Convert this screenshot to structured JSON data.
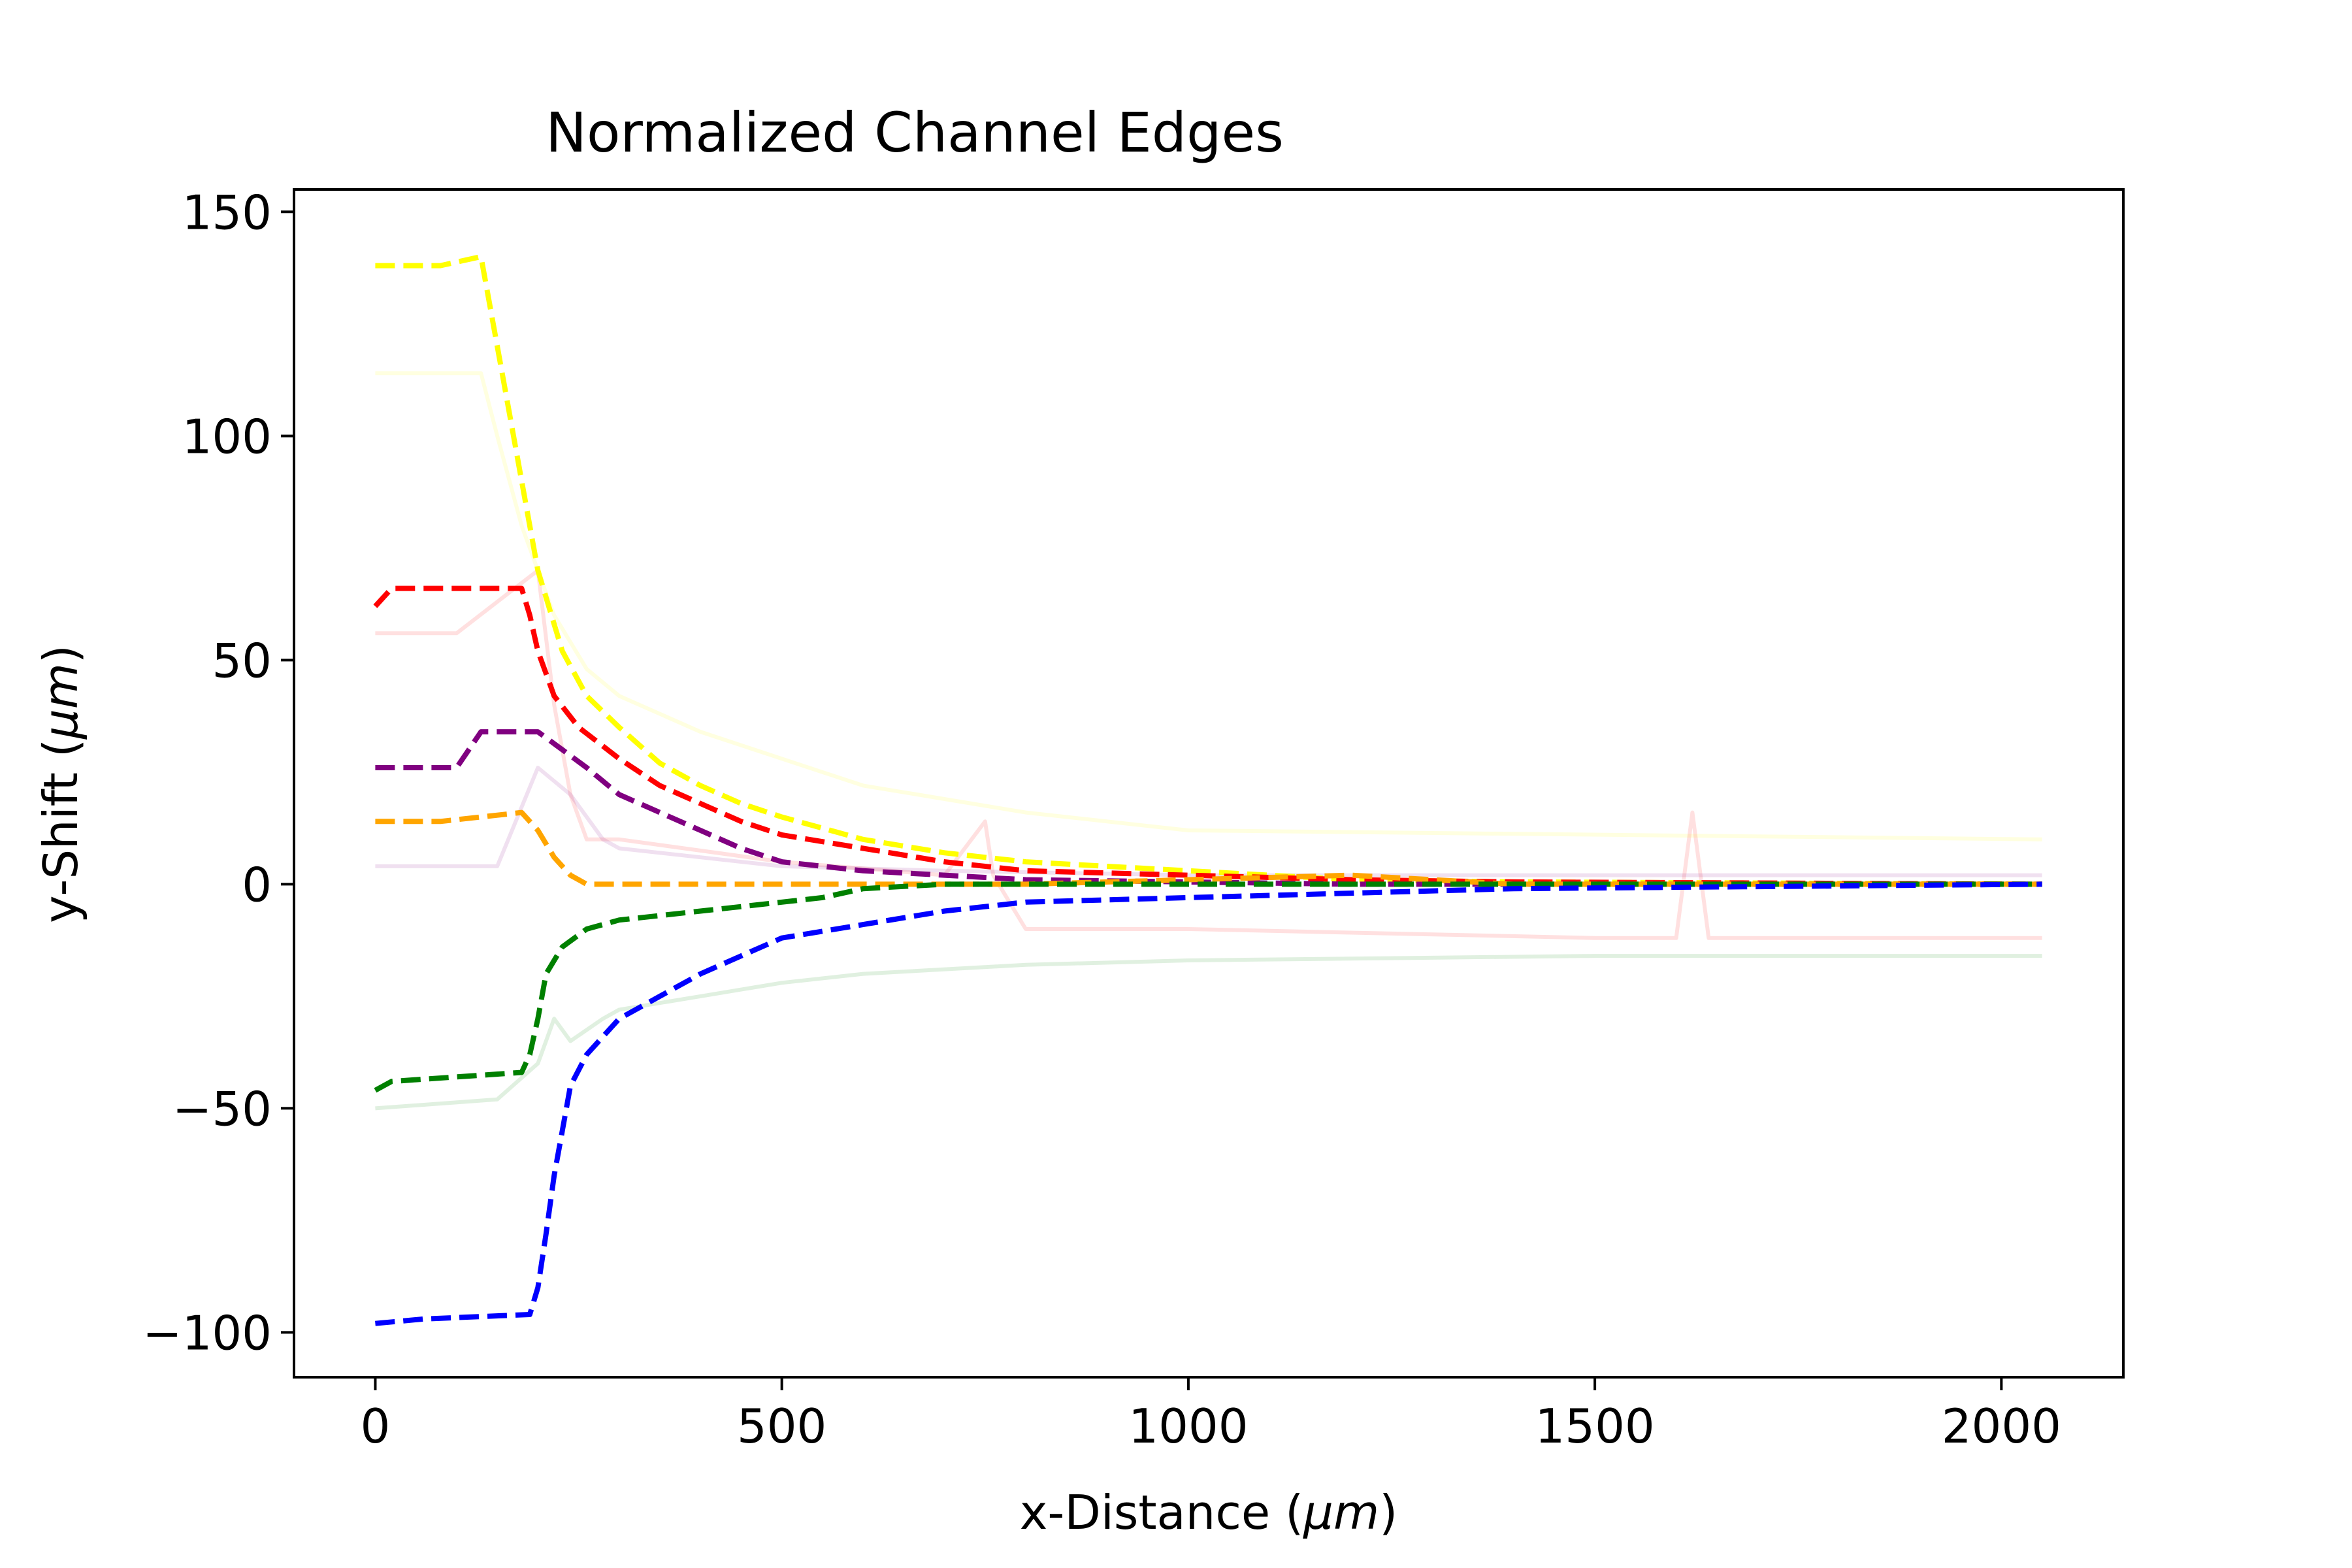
{
  "chart_data": {
    "type": "line",
    "title": "Normalized Channel Edges",
    "xlabel_prefix": "x-Distance (",
    "xlabel_unit": "μm",
    "xlabel_suffix": ")",
    "ylabel_prefix": "y-Shift (",
    "ylabel_unit": "μm",
    "ylabel_suffix": ")",
    "xlim": [
      -100,
      2150
    ],
    "ylim": [
      -110,
      155
    ],
    "xticks": [
      0,
      500,
      1000,
      1500,
      2000
    ],
    "xtick_labels": [
      "0",
      "500",
      "1000",
      "1500",
      "2000"
    ],
    "yticks": [
      -100,
      -50,
      0,
      50,
      100,
      150
    ],
    "ytick_labels": [
      "−100",
      "−50",
      "0",
      "50",
      "100",
      "150"
    ],
    "grid": false,
    "legend": false,
    "series": [
      {
        "color": "#ffff00",
        "style": "dashed",
        "opacity": 1,
        "x": [
          0,
          80,
          130,
          140,
          160,
          180,
          200,
          230,
          260,
          300,
          350,
          400,
          450,
          500,
          600,
          700,
          800,
          1000,
          1200,
          1400,
          2050
        ],
        "y": [
          138,
          138,
          140,
          130,
          110,
          90,
          70,
          52,
          42,
          35,
          27,
          22,
          18,
          15,
          10,
          7,
          5,
          3,
          1,
          0.5,
          0
        ]
      },
      {
        "color": "#ff0000",
        "style": "dashed",
        "opacity": 1,
        "x": [
          0,
          20,
          120,
          180,
          190,
          200,
          220,
          250,
          300,
          350,
          400,
          450,
          500,
          600,
          700,
          800,
          1000,
          1200,
          1400,
          2050
        ],
        "y": [
          62,
          66,
          66,
          66,
          60,
          52,
          42,
          35,
          28,
          22,
          18,
          14,
          11,
          8,
          5,
          3,
          2,
          1,
          0.5,
          0
        ]
      },
      {
        "color": "#800080",
        "style": "dashed",
        "opacity": 1,
        "x": [
          0,
          100,
          130,
          200,
          230,
          260,
          300,
          350,
          400,
          450,
          500,
          600,
          700,
          800,
          1000,
          1200,
          1400,
          2050
        ],
        "y": [
          26,
          26,
          34,
          34,
          30,
          26,
          20,
          16,
          12,
          8,
          5,
          3,
          2,
          1,
          0.5,
          0,
          0,
          0
        ]
      },
      {
        "color": "#ffa500",
        "style": "dashed",
        "opacity": 1,
        "x": [
          0,
          80,
          180,
          200,
          220,
          240,
          260,
          300,
          400,
          600,
          800,
          1000,
          1200,
          1400,
          2050
        ],
        "y": [
          14,
          14,
          16,
          12,
          6,
          2,
          0,
          0,
          0,
          0,
          0,
          1,
          2,
          0,
          0
        ]
      },
      {
        "color": "#008000",
        "style": "dashed",
        "opacity": 1,
        "x": [
          0,
          20,
          180,
          190,
          200,
          210,
          230,
          260,
          300,
          350,
          400,
          450,
          500,
          550,
          600,
          700,
          800,
          1000,
          2050
        ],
        "y": [
          -46,
          -44,
          -42,
          -38,
          -30,
          -20,
          -14,
          -10,
          -8,
          -7,
          -6,
          -5,
          -4,
          -3,
          -1,
          0,
          0,
          0,
          0
        ]
      },
      {
        "color": "#0000ff",
        "style": "dashed",
        "opacity": 1,
        "x": [
          0,
          60,
          190,
          200,
          210,
          220,
          230,
          240,
          260,
          300,
          350,
          400,
          450,
          500,
          600,
          700,
          800,
          1000,
          1200,
          1400,
          2050
        ],
        "y": [
          -98,
          -97,
          -96,
          -90,
          -78,
          -65,
          -55,
          -45,
          -38,
          -30,
          -25,
          -20,
          -16,
          -12,
          -9,
          -6,
          -4,
          -3,
          -2,
          -1,
          0
        ]
      },
      {
        "color": "#ffff00",
        "style": "solid",
        "opacity": 0.12,
        "x": [
          0,
          130,
          150,
          180,
          220,
          260,
          300,
          400,
          500,
          600,
          800,
          1000,
          2050
        ],
        "y": [
          114,
          114,
          100,
          80,
          60,
          48,
          42,
          34,
          28,
          22,
          16,
          12,
          10
        ]
      },
      {
        "color": "#ff0000",
        "style": "solid",
        "opacity": 0.12,
        "x": [
          0,
          100,
          200,
          220,
          240,
          260,
          300,
          500,
          700,
          750,
          760,
          800,
          1000,
          1500,
          1600,
          1620,
          1640,
          1660,
          2050
        ],
        "y": [
          56,
          56,
          70,
          40,
          20,
          10,
          10,
          5,
          2,
          14,
          2,
          -10,
          -10,
          -12,
          -12,
          16,
          -12,
          -12,
          -12
        ]
      },
      {
        "color": "#800080",
        "style": "solid",
        "opacity": 0.12,
        "x": [
          0,
          150,
          200,
          240,
          280,
          300,
          400,
          500,
          700,
          1000,
          2050
        ],
        "y": [
          4,
          4,
          26,
          20,
          10,
          8,
          6,
          4,
          3,
          2,
          2
        ]
      },
      {
        "color": "#008000",
        "style": "solid",
        "opacity": 0.12,
        "x": [
          0,
          150,
          200,
          220,
          240,
          280,
          300,
          400,
          500,
          600,
          800,
          1000,
          1500,
          2050
        ],
        "y": [
          -50,
          -48,
          -40,
          -30,
          -35,
          -30,
          -28,
          -25,
          -22,
          -20,
          -18,
          -17,
          -16,
          -16
        ]
      }
    ]
  }
}
